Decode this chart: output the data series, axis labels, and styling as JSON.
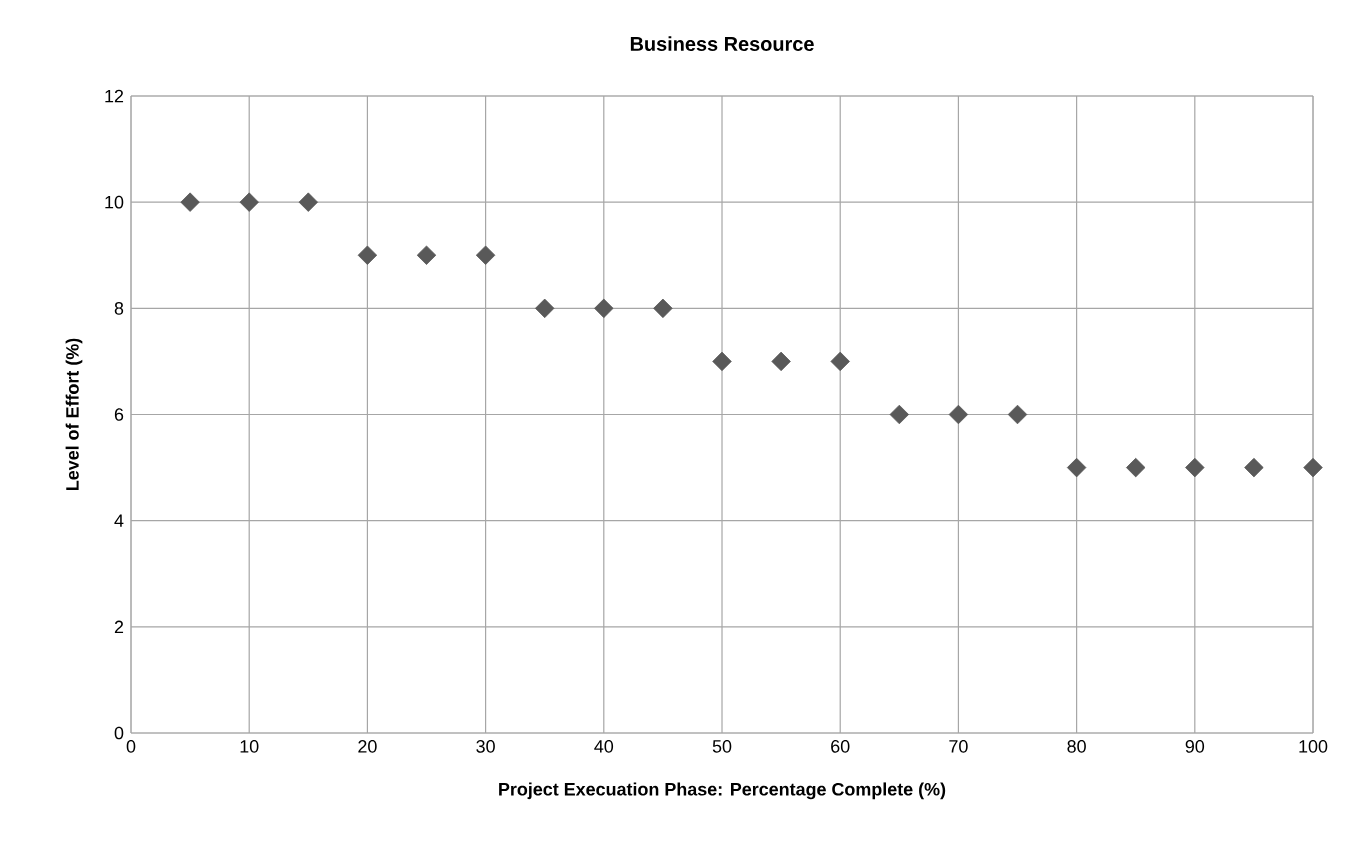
{
  "chart_data": {
    "type": "scatter",
    "title": "Business Resource",
    "xlabel": "Project Execuation Phase: Percentage Complete (%)",
    "ylabel": "Level of Effort (%)",
    "x": [
      5,
      10,
      15,
      20,
      25,
      30,
      35,
      40,
      45,
      50,
      55,
      60,
      65,
      70,
      75,
      80,
      85,
      90,
      95,
      100
    ],
    "series": [
      {
        "color": "#595959",
        "values": [
          10,
          10,
          10,
          9,
          9,
          9,
          8,
          8,
          8,
          7,
          7,
          7,
          6,
          6,
          6,
          5,
          5,
          5,
          5,
          5
        ]
      }
    ],
    "xlim": [
      0,
      100
    ],
    "xticks": [
      0,
      10,
      20,
      30,
      40,
      50,
      60,
      70,
      80,
      90,
      100
    ],
    "ylim": [
      0,
      12
    ],
    "yticks": [
      0,
      2,
      4,
      6,
      8,
      10,
      12
    ],
    "grid": true,
    "marker": "diamond"
  }
}
